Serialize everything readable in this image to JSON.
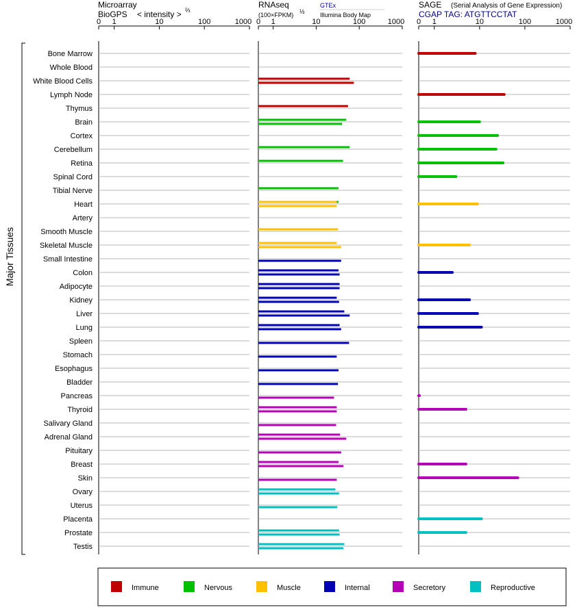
{
  "panels": [
    {
      "title_line1": "Microarray",
      "title_line2": "BioGPS",
      "title_suffix": "< intensity >",
      "title_exponent": "⅔",
      "ticks": [
        "0",
        "1",
        "10",
        "100",
        "1000"
      ]
    },
    {
      "title_line1": "RNAseq",
      "title_line2": "(100×FPKM)",
      "title_exponent": "½",
      "source_top": "GTEx",
      "source_bottom": "Illumina Body Map",
      "ticks": [
        "0",
        "1",
        "10",
        "100",
        "1000"
      ]
    },
    {
      "title_line1": "SAGE",
      "title_note": "(Serial Analysis of Gene Expression)",
      "title_line2": "CGAP TAG: ATGTTCCTAT",
      "ticks": [
        "0",
        "1",
        "10",
        "100",
        "1000"
      ]
    }
  ],
  "y_axis_label": "Major Tissues",
  "colors": {
    "Immune": "#c00000",
    "Nervous": "#00c000",
    "Muscle": "#ffc000",
    "Internal": "#0000b4",
    "Secretory": "#b400b4",
    "Reproductive": "#00c0c0",
    "grid": "#a0a0a0",
    "axis": "#000000",
    "source_text": "#00008b",
    "tag_text": "#00008b"
  },
  "legend": [
    {
      "label": "Immune",
      "color": "#c00000"
    },
    {
      "label": "Nervous",
      "color": "#00c000"
    },
    {
      "label": "Muscle",
      "color": "#ffc000"
    },
    {
      "label": "Internal",
      "color": "#0000b4"
    },
    {
      "label": "Secretory",
      "color": "#b400b4"
    },
    {
      "label": "Reproductive",
      "color": "#00c0c0"
    }
  ],
  "chart_data": {
    "type": "bar",
    "orientation": "horizontal",
    "x_scale": "log-like (0, 1, 10, 100, 1000)",
    "xlim": [
      0,
      1000
    ],
    "grid": true,
    "legend_position": "bottom",
    "tissues": [
      {
        "name": "Bone Marrow",
        "group": "Immune",
        "rnaseq": [],
        "sage": 8
      },
      {
        "name": "Whole Blood",
        "group": "Immune",
        "rnaseq": [
          60
        ],
        "sage": null
      },
      {
        "name": "White Blood Cells",
        "group": "Immune",
        "rnaseq": [
          null,
          75
        ],
        "sage": null
      },
      {
        "name": "Lymph Node",
        "group": "Immune",
        "rnaseq": [
          55
        ],
        "sage": 35
      },
      {
        "name": "Thymus",
        "group": "Immune",
        "rnaseq": [],
        "sage": null
      },
      {
        "name": "Brain",
        "group": "Nervous",
        "rnaseq": [
          50,
          40
        ],
        "sage": 10
      },
      {
        "name": "Cortex",
        "group": "Nervous",
        "rnaseq": [
          60
        ],
        "sage": 25
      },
      {
        "name": "Cerebellum",
        "group": "Nervous",
        "rnaseq": [
          42
        ],
        "sage": 23
      },
      {
        "name": "Retina",
        "group": "Nervous",
        "rnaseq": [],
        "sage": 33
      },
      {
        "name": "Spinal Cord",
        "group": "Nervous",
        "rnaseq": [
          33
        ],
        "sage": 3
      },
      {
        "name": "Tibial Nerve",
        "group": "Nervous",
        "rnaseq": [
          33
        ],
        "sage": null
      },
      {
        "name": "Heart",
        "group": "Muscle",
        "rnaseq": [
          30,
          30
        ],
        "sage": 9
      },
      {
        "name": "Artery",
        "group": "Muscle",
        "rnaseq": [
          32
        ],
        "sage": null
      },
      {
        "name": "Smooth Muscle",
        "group": "Muscle",
        "rnaseq": [],
        "sage": null
      },
      {
        "name": "Skeletal Muscle",
        "group": "Muscle",
        "rnaseq": [
          30,
          38
        ],
        "sage": 6
      },
      {
        "name": "Small Intestine",
        "group": "Internal",
        "rnaseq": [
          null,
          38
        ],
        "sage": null
      },
      {
        "name": "Colon",
        "group": "Internal",
        "rnaseq": [
          33,
          35
        ],
        "sage": 2.5
      },
      {
        "name": "Adipocyte",
        "group": "Internal",
        "rnaseq": [
          35,
          35
        ],
        "sage": null
      },
      {
        "name": "Kidney",
        "group": "Internal",
        "rnaseq": [
          30,
          34
        ],
        "sage": 6
      },
      {
        "name": "Liver",
        "group": "Internal",
        "rnaseq": [
          45,
          60
        ],
        "sage": 9
      },
      {
        "name": "Lung",
        "group": "Internal",
        "rnaseq": [
          35,
          38
        ],
        "sage": 11
      },
      {
        "name": "Spleen",
        "group": "Internal",
        "rnaseq": [
          null,
          58
        ],
        "sage": null
      },
      {
        "name": "Stomach",
        "group": "Internal",
        "rnaseq": [
          null,
          30
        ],
        "sage": null
      },
      {
        "name": "Esophagus",
        "group": "Internal",
        "rnaseq": [
          null,
          33
        ],
        "sage": null
      },
      {
        "name": "Bladder",
        "group": "Internal",
        "rnaseq": [
          null,
          32
        ],
        "sage": null
      },
      {
        "name": "Pancreas",
        "group": "Secretory",
        "rnaseq": [
          null,
          26
        ],
        "sage": 0.05
      },
      {
        "name": "Thyroid",
        "group": "Secretory",
        "rnaseq": [
          30,
          30
        ],
        "sage": 5
      },
      {
        "name": "Salivary Gland",
        "group": "Secretory",
        "rnaseq": [
          null,
          29
        ],
        "sage": null
      },
      {
        "name": "Adrenal Gland",
        "group": "Secretory",
        "rnaseq": [
          36,
          50
        ],
        "sage": null
      },
      {
        "name": "Pituitary",
        "group": "Secretory",
        "rnaseq": [
          null,
          38
        ],
        "sage": null
      },
      {
        "name": "Breast",
        "group": "Secretory",
        "rnaseq": [
          33,
          43
        ],
        "sage": 5
      },
      {
        "name": "Skin",
        "group": "Secretory",
        "rnaseq": [
          null,
          30
        ],
        "sage": 70
      },
      {
        "name": "Ovary",
        "group": "Reproductive",
        "rnaseq": [
          28,
          34
        ],
        "sage": null
      },
      {
        "name": "Uterus",
        "group": "Reproductive",
        "rnaseq": [
          null,
          31
        ],
        "sage": null
      },
      {
        "name": "Placenta",
        "group": "Reproductive",
        "rnaseq": [],
        "sage": 11
      },
      {
        "name": "Prostate",
        "group": "Reproductive",
        "rnaseq": [
          34,
          35
        ],
        "sage": 5
      },
      {
        "name": "Testis",
        "group": "Reproductive",
        "rnaseq": [
          45,
          43
        ],
        "sage": null
      }
    ]
  }
}
